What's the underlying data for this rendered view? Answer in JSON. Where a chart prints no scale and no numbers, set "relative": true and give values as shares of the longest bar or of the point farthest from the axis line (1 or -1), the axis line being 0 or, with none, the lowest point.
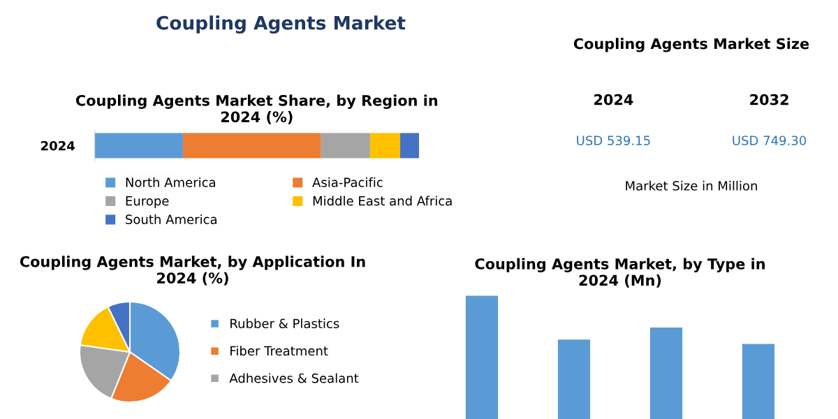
{
  "chart_data": [
    {
      "type": "other",
      "title": "Coupling Agents Market"
    },
    {
      "type": "bar",
      "title": "Coupling Agents Market Share, by Region in\n2024 (%)",
      "orientation": "horizontal",
      "stacked": true,
      "relative": true,
      "categories": [
        "2024"
      ],
      "legend": "bottom",
      "series": [
        {
          "name": "North America",
          "color": "#5b9bd5",
          "values": [
            0.272
          ]
        },
        {
          "name": "Asia-Pacific",
          "color": "#ed7d31",
          "values": [
            0.426
          ]
        },
        {
          "name": "Europe",
          "color": "#a5a5a5",
          "values": [
            0.151
          ]
        },
        {
          "name": "Middle East and Africa",
          "color": "#ffc000",
          "values": [
            0.093
          ]
        },
        {
          "name": "South America",
          "color": "#4472c4",
          "values": [
            0.058
          ]
        }
      ]
    },
    {
      "type": "other",
      "title": "Coupling Agents Market Size",
      "annotations": [
        "2024",
        "2032",
        "USD 539.15",
        "USD 749.30",
        "Market Size in Million"
      ]
    },
    {
      "type": "pie",
      "title": "Coupling Agents Market, by Application In\n2024 (%)",
      "legend": "right",
      "categories": [
        "Rubber & Plastics",
        "Fiber Treatment",
        "Adhesives & Sealant",
        null,
        null
      ],
      "values": [
        34.7,
        21.4,
        21.1,
        15.6,
        7.2
      ],
      "colors": [
        "#5b9bd5",
        "#ed7d31",
        "#a5a5a5",
        "#ffc000",
        "#4472c4"
      ]
    },
    {
      "type": "bar",
      "title": "Coupling Agents Market, by Type in\n2024 (Mn)",
      "relative": true,
      "categories": [
        null,
        null,
        null,
        null
      ],
      "color": "#5b9bd5",
      "values": [
        1,
        0.645,
        0.743,
        0.609
      ]
    }
  ]
}
